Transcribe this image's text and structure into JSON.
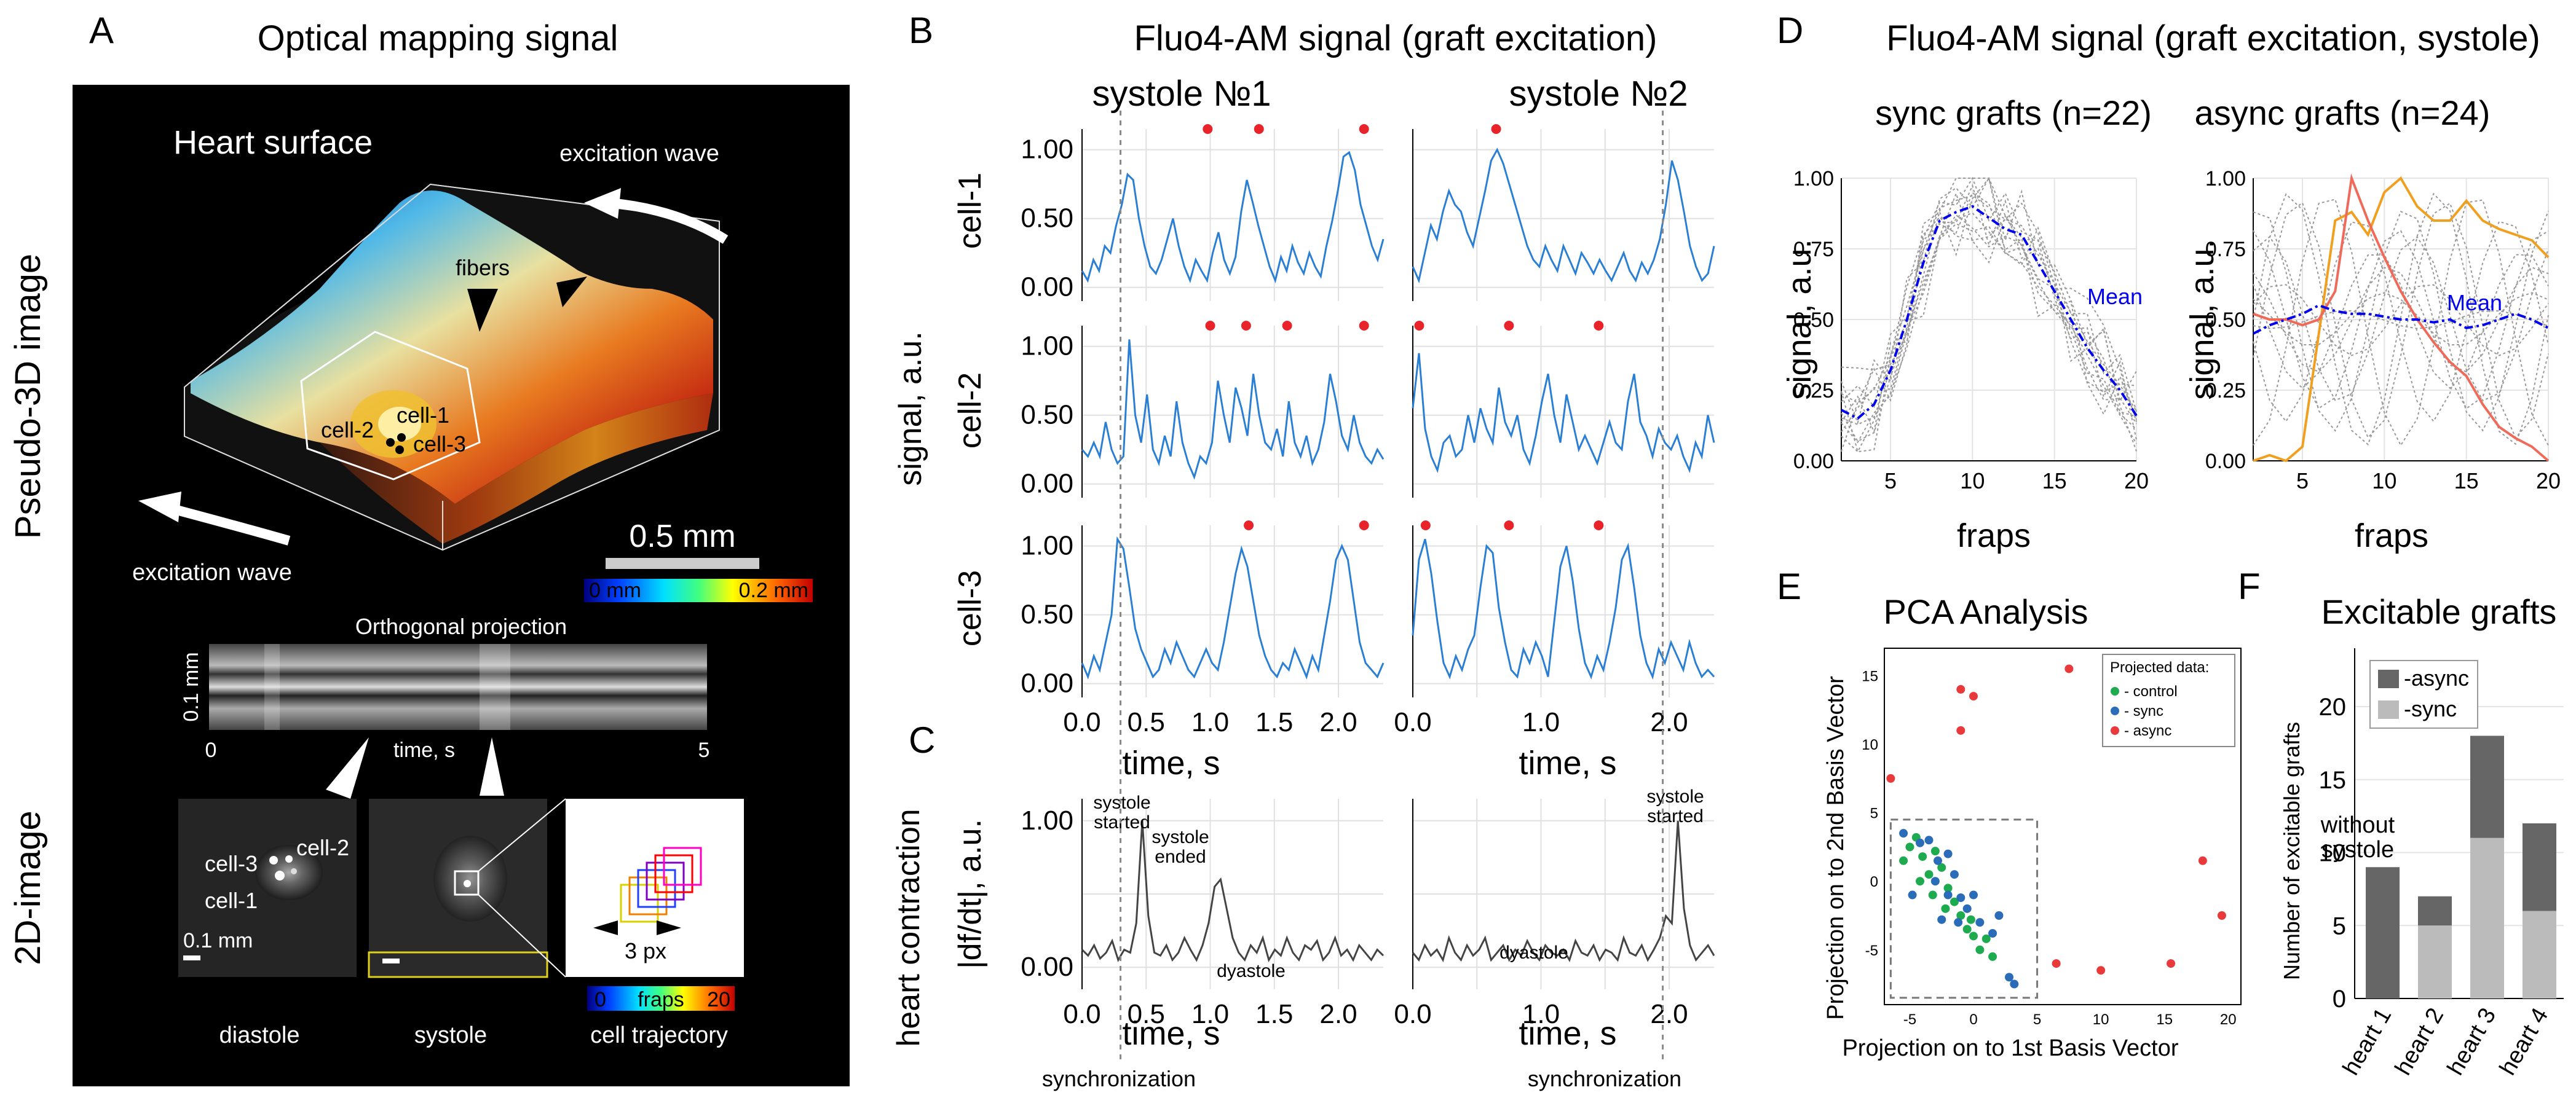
{
  "panel_a": {
    "letter": "A",
    "title": "Optical mapping signal",
    "side_label_top": "Pseudo-3D image",
    "side_label_bottom": "2D-image",
    "heart_surface": "Heart surface",
    "excitation_wave_top": "excitation wave",
    "excitation_wave_bottom": "excitation wave",
    "fibers": "fibers",
    "cell1": "cell-1",
    "cell2": "cell-2",
    "cell3": "cell-3",
    "scale_bar": "0.5 mm",
    "colorbar_min": "0 mm",
    "colorbar_max": "0.2 mm",
    "ortho_title": "Orthogonal projection",
    "ortho_ylabel": "0.1 mm",
    "ortho_x0": "0",
    "ortho_x1": "5",
    "ortho_xlabel": "time, s",
    "scale_2d": "0.1 mm",
    "cell1_2d": "cell-1",
    "cell2_2d": "cell-2",
    "cell3_2d": "cell-3",
    "px3": "3 px",
    "fraps_min": "0",
    "fraps_label": "fraps",
    "fraps_max": "20",
    "cap_diastole": "diastole",
    "cap_systole": "systole",
    "cap_traj": "cell trajectory"
  },
  "panel_b": {
    "letter": "B",
    "title": "Fluo4-AM signal (graft excitation)",
    "col1": "systole №1",
    "col2": "systole №2",
    "ylabel": "signal, a.u.",
    "row_labels": [
      "cell-1",
      "cell-2",
      "cell-3"
    ],
    "yticks": [
      "0.00",
      "0.50",
      "1.00"
    ],
    "xticks1": [
      "0.0",
      "0.5",
      "1.0",
      "1.5",
      "2.0"
    ],
    "xticks2": [
      "0.0",
      "1.0",
      "2.0"
    ],
    "xlabel": "time, s"
  },
  "panel_c": {
    "letter": "C",
    "ylabel1": "heart contraction",
    "ylabel2": "|df/dt|, a.u.",
    "yticks": [
      "0.00",
      "1.00"
    ],
    "xlabel": "time, s",
    "ann_started": [
      "systole",
      "started"
    ],
    "ann_ended": [
      "systole",
      "ended"
    ],
    "ann_dyastole1": "dyastole",
    "ann_dyastole2": "dyastole",
    "ann_started2": [
      "systole",
      "started"
    ],
    "sync1": "synchronization",
    "sync2": "synchronization"
  },
  "panel_d": {
    "letter": "D",
    "title": "Fluo4-AM signal (graft excitation, systole)",
    "sub1": "sync grafts (n=22)",
    "sub2": "async grafts (n=24)",
    "ylabel": "signal, a.u.",
    "xlabel": "fraps",
    "yticks": [
      "0.00",
      "0.25",
      "0.50",
      "0.75",
      "1.00"
    ],
    "xticks": [
      "5",
      "10",
      "15",
      "20"
    ],
    "mean_label": "Mean"
  },
  "panel_e": {
    "letter": "E",
    "title": "PCA Analysis",
    "xlabel": "Projection on to 1st Basis Vector",
    "ylabel": "Projection on to 2nd Basis Vector",
    "xticks": [
      "-5",
      "0",
      "5",
      "10",
      "15",
      "20"
    ],
    "yticks": [
      "15",
      "10",
      "5",
      "0",
      "-5"
    ],
    "legend_title": "Projected data:",
    "legend": [
      "- control",
      "- sync",
      "- async"
    ]
  },
  "panel_f": {
    "letter": "F",
    "title": "Excitable grafts",
    "ylabel": "Number of excitable grafts",
    "yticks": [
      "0",
      "5",
      "10",
      "15",
      "20"
    ],
    "legend": [
      "-async",
      "-sync"
    ],
    "annotation": [
      "without",
      "systole"
    ]
  },
  "colors": {
    "blue_trace": "#2a7fd4",
    "peak_red": "#e8242a",
    "mean_blue": "#0000ee",
    "orange": "#f0a020",
    "salmon": "#f06a5a",
    "pca_control": "#1eab4f",
    "pca_sync": "#2a6cb8",
    "pca_async": "#e83a3a",
    "bar_async": "#666666",
    "bar_sync": "#bbbbbb"
  },
  "chart_data": [
    {
      "id": "B_cell1_systole1",
      "type": "line",
      "x_range": [
        0,
        2.35
      ],
      "ylim": [
        -0.1,
        1.15
      ],
      "y": [
        0.12,
        0.05,
        0.2,
        0.12,
        0.3,
        0.25,
        0.45,
        0.6,
        0.82,
        0.78,
        0.5,
        0.3,
        0.15,
        0.1,
        0.2,
        0.35,
        0.5,
        0.3,
        0.15,
        0.05,
        0.2,
        0.12,
        0.05,
        0.25,
        0.4,
        0.2,
        0.1,
        0.22,
        0.55,
        0.78,
        0.62,
        0.45,
        0.3,
        0.15,
        0.05,
        0.22,
        0.12,
        0.3,
        0.18,
        0.1,
        0.25,
        0.15,
        0.08,
        0.3,
        0.48,
        0.7,
        0.95,
        0.98,
        0.85,
        0.6,
        0.45,
        0.3,
        0.2,
        0.35
      ],
      "peaks_x": [
        0.98,
        1.38,
        2.2
      ],
      "peaks_y": 1.15
    },
    {
      "id": "B_cell1_systole2",
      "type": "line",
      "x_range": [
        0,
        2.35
      ],
      "ylim": [
        -0.1,
        1.15
      ],
      "y": [
        0.15,
        0.05,
        0.25,
        0.45,
        0.35,
        0.55,
        0.7,
        0.6,
        0.55,
        0.4,
        0.3,
        0.5,
        0.7,
        0.92,
        1.0,
        0.9,
        0.75,
        0.6,
        0.45,
        0.3,
        0.2,
        0.15,
        0.3,
        0.2,
        0.12,
        0.3,
        0.2,
        0.1,
        0.25,
        0.18,
        0.1,
        0.2,
        0.12,
        0.05,
        0.15,
        0.25,
        0.12,
        0.05,
        0.18,
        0.1,
        0.2,
        0.35,
        0.6,
        0.92,
        0.78,
        0.55,
        0.3,
        0.15,
        0.05,
        0.1,
        0.3
      ],
      "peaks_x": [
        0.65
      ],
      "peaks_y": 1.15
    },
    {
      "id": "B_cell2_systole1",
      "type": "line",
      "x_range": [
        0,
        2.35
      ],
      "ylim": [
        -0.1,
        1.15
      ],
      "y": [
        0.25,
        0.2,
        0.3,
        0.2,
        0.45,
        0.25,
        0.15,
        0.2,
        1.05,
        0.5,
        0.3,
        0.65,
        0.25,
        0.15,
        0.35,
        0.2,
        0.6,
        0.3,
        0.15,
        0.05,
        0.2,
        0.15,
        0.3,
        0.75,
        0.5,
        0.3,
        0.7,
        0.55,
        0.35,
        0.8,
        0.5,
        0.3,
        0.25,
        0.4,
        0.2,
        0.6,
        0.3,
        0.2,
        0.35,
        0.15,
        0.25,
        0.45,
        0.8,
        0.6,
        0.35,
        0.25,
        0.5,
        0.3,
        0.2,
        0.15,
        0.25,
        0.18
      ],
      "peaks_x": [
        1.0,
        1.28,
        1.6,
        2.2
      ],
      "peaks_y": 1.15
    },
    {
      "id": "B_cell2_systole2",
      "type": "line",
      "x_range": [
        0,
        2.35
      ],
      "ylim": [
        -0.1,
        1.15
      ],
      "y": [
        0.55,
        0.95,
        0.4,
        0.2,
        0.1,
        0.3,
        0.35,
        0.2,
        0.25,
        0.5,
        0.3,
        0.55,
        0.4,
        0.3,
        0.7,
        0.45,
        0.35,
        0.5,
        0.25,
        0.15,
        0.35,
        0.6,
        0.8,
        0.5,
        0.3,
        0.65,
        0.45,
        0.25,
        0.35,
        0.25,
        0.15,
        0.3,
        0.45,
        0.3,
        0.25,
        0.6,
        0.8,
        0.45,
        0.35,
        0.2,
        0.4,
        0.3,
        0.25,
        0.35,
        0.2,
        0.1,
        0.3,
        0.2,
        0.5,
        0.3
      ],
      "peaks_x": [
        0.05,
        0.75,
        1.45
      ],
      "peaks_y": 1.15
    },
    {
      "id": "B_cell3_systole1",
      "type": "line",
      "x_range": [
        0,
        2.35
      ],
      "ylim": [
        -0.1,
        1.15
      ],
      "y": [
        0.15,
        0.05,
        0.2,
        0.1,
        0.3,
        0.5,
        1.05,
        0.98,
        0.7,
        0.4,
        0.25,
        0.15,
        0.05,
        0.1,
        0.25,
        0.15,
        0.3,
        0.2,
        0.1,
        0.05,
        0.15,
        0.25,
        0.15,
        0.1,
        0.3,
        0.55,
        0.8,
        0.98,
        0.85,
        0.6,
        0.35,
        0.2,
        0.1,
        0.05,
        0.15,
        0.1,
        0.25,
        0.15,
        0.05,
        0.2,
        0.1,
        0.35,
        0.6,
        0.9,
        1.0,
        0.9,
        0.6,
        0.3,
        0.15,
        0.1,
        0.05,
        0.15
      ],
      "peaks_x": [
        1.3,
        2.2
      ],
      "peaks_y": 1.15
    },
    {
      "id": "B_cell3_systole2",
      "type": "line",
      "x_range": [
        0,
        2.35
      ],
      "ylim": [
        -0.1,
        1.15
      ],
      "y": [
        0.35,
        0.9,
        1.05,
        0.8,
        0.45,
        0.15,
        0.05,
        0.2,
        0.1,
        0.25,
        0.35,
        0.7,
        1.0,
        0.95,
        0.55,
        0.3,
        0.1,
        0.05,
        0.25,
        0.15,
        0.3,
        0.2,
        0.05,
        0.45,
        0.85,
        1.0,
        0.75,
        0.4,
        0.15,
        0.05,
        0.2,
        0.1,
        0.3,
        0.55,
        0.9,
        1.0,
        0.7,
        0.35,
        0.15,
        0.05,
        0.25,
        0.15,
        0.3,
        0.2,
        0.1,
        0.3,
        0.15,
        0.05,
        0.1,
        0.05
      ],
      "peaks_x": [
        0.1,
        0.75,
        1.45
      ],
      "peaks_y": 1.15
    },
    {
      "id": "C_systole1",
      "type": "line",
      "x_range": [
        0,
        2.35
      ],
      "ylim": [
        -0.15,
        1.15
      ],
      "y": [
        0.12,
        0.08,
        0.15,
        0.06,
        0.1,
        0.18,
        0.05,
        0.12,
        0.1,
        0.3,
        1.0,
        0.35,
        0.1,
        0.08,
        0.15,
        0.05,
        0.1,
        0.2,
        0.12,
        0.05,
        0.15,
        0.3,
        0.55,
        0.6,
        0.4,
        0.2,
        0.1,
        0.05,
        0.15,
        0.1,
        0.2,
        0.05,
        0.12,
        0.08,
        0.2,
        0.1,
        0.05,
        0.15,
        0.12,
        0.18,
        0.05,
        0.1,
        0.2,
        0.08,
        0.12,
        0.05,
        0.15,
        0.1,
        0.05,
        0.12,
        0.08
      ],
      "markers": [
        0.3,
        1.95
      ]
    },
    {
      "id": "C_systole2",
      "type": "line",
      "x_range": [
        0,
        2.35
      ],
      "ylim": [
        -0.15,
        1.15
      ],
      "y": [
        0.1,
        0.05,
        0.15,
        0.08,
        0.12,
        0.05,
        0.2,
        0.1,
        0.05,
        0.15,
        0.08,
        0.12,
        0.2,
        0.05,
        0.1,
        0.15,
        0.05,
        0.12,
        0.08,
        0.18,
        0.1,
        0.05,
        0.15,
        0.1,
        0.08,
        0.12,
        0.05,
        0.18,
        0.1,
        0.08,
        0.15,
        0.05,
        0.12,
        0.1,
        0.05,
        0.2,
        0.1,
        0.08,
        0.15,
        0.05,
        0.12,
        0.2,
        0.35,
        0.3,
        1.0,
        0.4,
        0.15,
        0.05,
        0.1,
        0.15,
        0.08
      ]
    },
    {
      "id": "D_sync",
      "type": "line",
      "x_range": [
        2,
        20
      ],
      "ylim": [
        0,
        1
      ],
      "x": [
        2,
        3,
        4,
        5,
        6,
        7,
        8,
        9,
        10,
        11,
        12,
        13,
        14,
        15,
        16,
        17,
        18,
        19,
        20
      ],
      "mean": [
        0.18,
        0.15,
        0.2,
        0.32,
        0.5,
        0.7,
        0.85,
        0.88,
        0.9,
        0.86,
        0.82,
        0.8,
        0.7,
        0.6,
        0.5,
        0.4,
        0.32,
        0.25,
        0.16
      ]
    },
    {
      "id": "D_async",
      "type": "line",
      "x_range": [
        2,
        20
      ],
      "ylim": [
        0,
        1
      ],
      "x": [
        2,
        3,
        4,
        5,
        6,
        7,
        8,
        9,
        10,
        11,
        12,
        13,
        14,
        15,
        16,
        17,
        18,
        19,
        20
      ],
      "mean": [
        0.45,
        0.48,
        0.5,
        0.52,
        0.55,
        0.53,
        0.52,
        0.52,
        0.51,
        0.5,
        0.5,
        0.49,
        0.5,
        0.47,
        0.48,
        0.5,
        0.52,
        0.5,
        0.47
      ],
      "orange": [
        0.0,
        0.02,
        0.0,
        0.05,
        0.45,
        0.85,
        0.88,
        0.8,
        0.95,
        1.0,
        0.9,
        0.85,
        0.85,
        0.92,
        0.85,
        0.82,
        0.8,
        0.78,
        0.72
      ],
      "salmon": [
        0.52,
        0.5,
        0.5,
        0.48,
        0.5,
        0.6,
        1.0,
        0.85,
        0.72,
        0.6,
        0.5,
        0.42,
        0.35,
        0.3,
        0.2,
        0.12,
        0.08,
        0.05,
        0.0
      ]
    },
    {
      "id": "E_pca",
      "type": "scatter",
      "xlim": [
        -7,
        21
      ],
      "ylim": [
        -9,
        17
      ],
      "control": [
        [
          -5,
          2.5
        ],
        [
          -4.5,
          3.2
        ],
        [
          -4,
          1.8
        ],
        [
          -3.5,
          0.5
        ],
        [
          -3,
          2.2
        ],
        [
          -2.5,
          1
        ],
        [
          -2,
          -0.5
        ],
        [
          -1.5,
          -1.5
        ],
        [
          -1,
          -2.5
        ],
        [
          -0.5,
          -3.5
        ],
        [
          0,
          -4
        ],
        [
          -4.2,
          0
        ],
        [
          -3.2,
          -1
        ],
        [
          -2.2,
          -2
        ],
        [
          0.5,
          -5
        ],
        [
          1.5,
          -5.5
        ],
        [
          1,
          -4.2
        ],
        [
          -5.5,
          1.5
        ],
        [
          -0.2,
          -2.8
        ]
      ],
      "sync": [
        [
          -5.5,
          3.5
        ],
        [
          -4.2,
          2.8
        ],
        [
          -3.5,
          3
        ],
        [
          -2.8,
          1.5
        ],
        [
          -2,
          2
        ],
        [
          -3,
          0
        ],
        [
          -2,
          -1
        ],
        [
          -1,
          -1.2
        ],
        [
          -1.5,
          0.5
        ],
        [
          -0.5,
          -2
        ],
        [
          0.5,
          -3
        ],
        [
          0,
          -1
        ],
        [
          -1.2,
          -3
        ],
        [
          2,
          -2.5
        ],
        [
          2.8,
          -7
        ],
        [
          3.2,
          -7.5
        ],
        [
          -4.8,
          -1
        ],
        [
          1.5,
          -3.8
        ],
        [
          -2.5,
          -2.8
        ]
      ],
      "async": [
        [
          -6.5,
          7.5
        ],
        [
          -1,
          14
        ],
        [
          0,
          13.5
        ],
        [
          -1,
          11
        ],
        [
          7.5,
          15.5
        ],
        [
          6.5,
          -6
        ],
        [
          10,
          -6.5
        ],
        [
          15.5,
          -6
        ],
        [
          18,
          1.5
        ],
        [
          19.5,
          -2.5
        ]
      ],
      "dashed_box": [
        [
          -6.5,
          -8.5
        ],
        [
          5,
          4.5
        ]
      ]
    },
    {
      "id": "F_bars",
      "type": "bar",
      "categories": [
        "heart 1",
        "heart 2",
        "heart 3",
        "heart 4"
      ],
      "series": [
        {
          "name": "-async",
          "values": [
            9,
            2,
            7,
            6
          ]
        },
        {
          "name": "-sync",
          "values": [
            0,
            5,
            11,
            6
          ]
        }
      ],
      "ylim": [
        0,
        24
      ]
    }
  ]
}
